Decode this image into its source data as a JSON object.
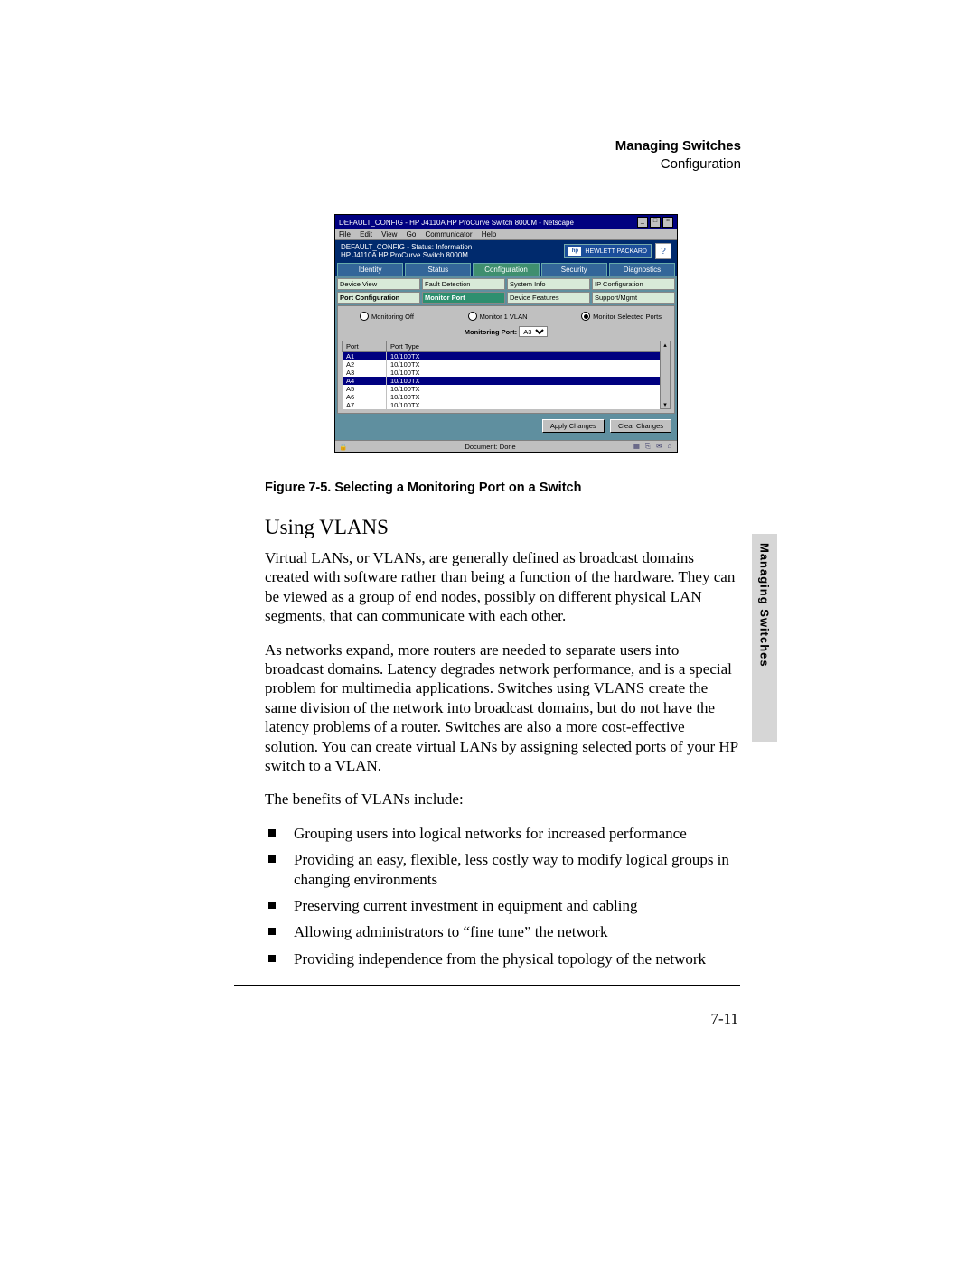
{
  "header": {
    "title": "Managing Switches",
    "subtitle": "Configuration"
  },
  "side_tab": "Managing Switches",
  "screenshot": {
    "window_title": "DEFAULT_CONFIG - HP J4110A HP ProCurve Switch 8000M - Netscape",
    "menus": [
      "File",
      "Edit",
      "View",
      "Go",
      "Communicator",
      "Help"
    ],
    "status_line1": "DEFAULT_CONFIG - Status: Information",
    "status_line2": "HP J4110A HP ProCurve Switch 8000M",
    "hp_brand": "HEWLETT\nPACKARD",
    "main_tabs": [
      "Identity",
      "Status",
      "Configuration",
      "Security",
      "Diagnostics"
    ],
    "active_main_tab": 2,
    "subtabs_row1": [
      "Device View",
      "Fault Detection",
      "System Info",
      "IP Configuration"
    ],
    "subtabs_row2": [
      "Port Configuration",
      "Monitor Port",
      "Device Features",
      "Support/Mgmt"
    ],
    "active_subtab": "Monitor Port",
    "radios": [
      {
        "label": "Monitoring Off",
        "selected": false
      },
      {
        "label": "Monitor 1 VLAN",
        "selected": false
      },
      {
        "label": "Monitor Selected Ports",
        "selected": true
      }
    ],
    "monitoring_port_label": "Monitoring Port:",
    "monitoring_port_value": "A3",
    "port_columns": [
      "Port",
      "Port Type"
    ],
    "port_rows": [
      {
        "port": "A1",
        "type": "10/100TX",
        "selected": true
      },
      {
        "port": "A2",
        "type": "10/100TX",
        "selected": false
      },
      {
        "port": "A3",
        "type": "10/100TX",
        "selected": false
      },
      {
        "port": "A4",
        "type": "10/100TX",
        "selected": true
      },
      {
        "port": "A5",
        "type": "10/100TX",
        "selected": false
      },
      {
        "port": "A6",
        "type": "10/100TX",
        "selected": false
      },
      {
        "port": "A7",
        "type": "10/100TX",
        "selected": false
      }
    ],
    "buttons": [
      "Apply Changes",
      "Clear Changes"
    ],
    "status_text": "Document: Done"
  },
  "caption": "Figure 7-5.   Selecting a Monitoring Port on a Switch",
  "section_heading": "Using VLANS",
  "para1": "Virtual LANs, or VLANs, are generally defined as broadcast domains created with software rather than being a function of the hardware. They can be viewed as a group of end nodes, possibly on different physical LAN segments, that can communicate with each other.",
  "para2": "As networks expand, more routers are needed to separate users into broadcast domains. Latency degrades network performance, and is a special problem for multimedia applications. Switches using VLANS create the same division of the network into broadcast domains, but do not have the latency problems of a router. Switches are also a more cost-effective solution. You can create virtual LANs by assigning selected ports of your HP switch to a VLAN.",
  "para3": "The benefits of VLANs include:",
  "bullets": [
    "Grouping users into logical networks for increased performance",
    "Providing an easy, flexible, less costly way to modify logical groups in changing environments",
    "Preserving current investment in equipment and cabling",
    "Allowing administrators to “fine tune” the network",
    "Providing independence from the physical topology of the network"
  ],
  "page_number": "7-11"
}
